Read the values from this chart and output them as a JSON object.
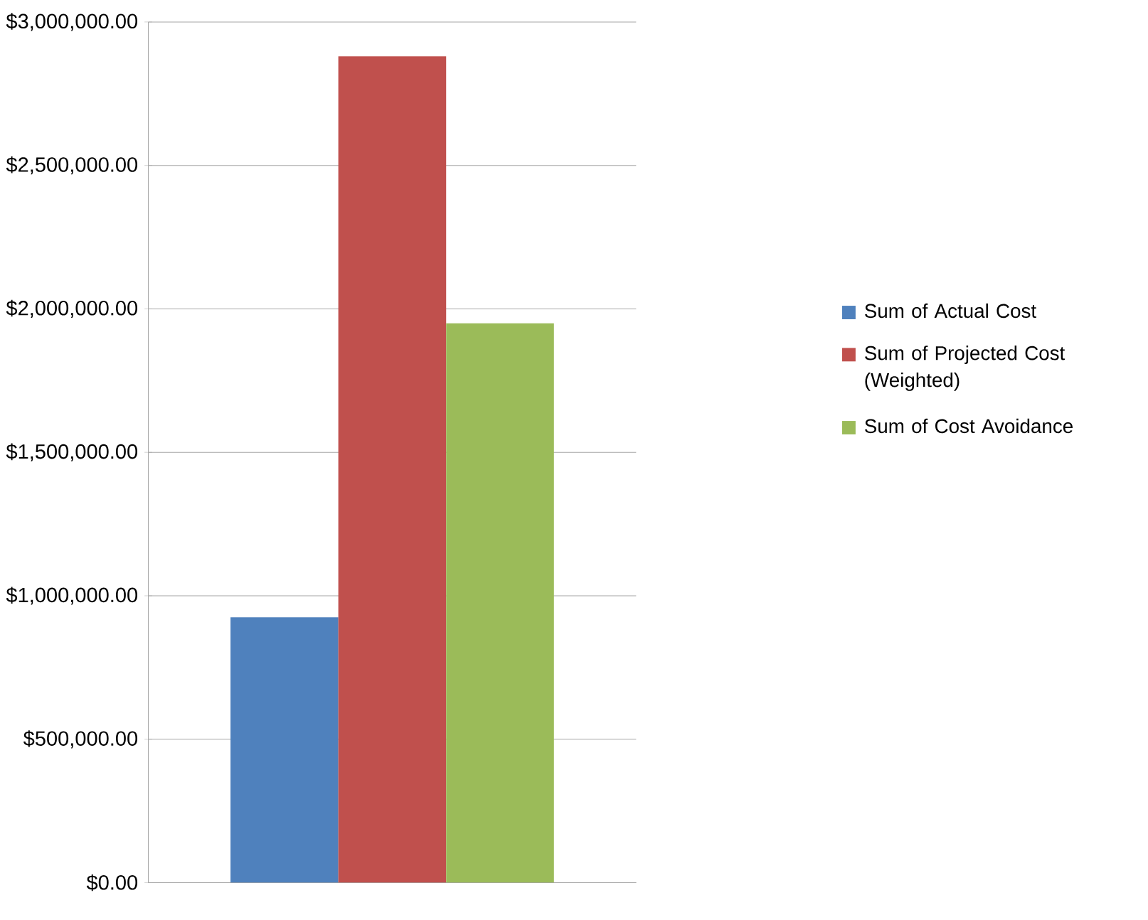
{
  "chart_data": {
    "type": "bar",
    "categories": [
      null
    ],
    "series": [
      {
        "name": "Sum of Actual Cost",
        "color": "#4f81bd",
        "values": [
          925000
        ]
      },
      {
        "name": "Sum of Projected Cost (Weighted)",
        "color": "#c0504d",
        "values": [
          2880000
        ]
      },
      {
        "name": "Sum of Cost Avoidance",
        "color": "#9bbb59",
        "values": [
          1950000
        ]
      }
    ],
    "ylim": [
      0,
      3000000
    ],
    "yticks": [
      {
        "value": 0,
        "label": "$0.00"
      },
      {
        "value": 500000,
        "label": "$500,000.00"
      },
      {
        "value": 1000000,
        "label": "$1,000,000.00"
      },
      {
        "value": 1500000,
        "label": "$1,500,000.00"
      },
      {
        "value": 2000000,
        "label": "$2,000,000.00"
      },
      {
        "value": 2500000,
        "label": "$2,500,000.00"
      },
      {
        "value": 3000000,
        "label": "$3,000,000.00"
      }
    ],
    "grid": "y",
    "legend": "right"
  }
}
